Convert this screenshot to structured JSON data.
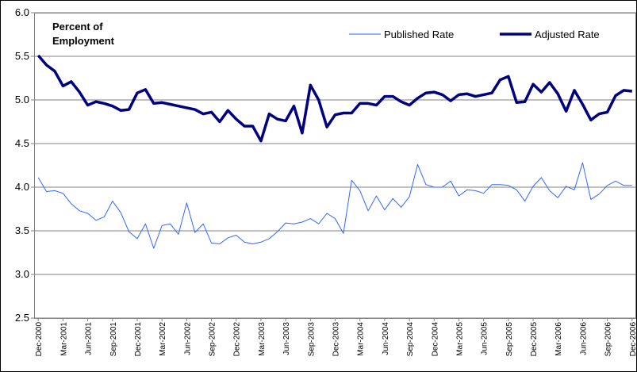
{
  "chart_data": {
    "type": "line",
    "annotation": [
      "Percent of",
      "Employment"
    ],
    "categories": [
      "Dec-2000",
      null,
      null,
      "Mar-2001",
      null,
      null,
      "Jun-2001",
      null,
      null,
      "Sep-2001",
      null,
      null,
      "Dec-2001",
      null,
      null,
      "Mar-2002",
      null,
      null,
      "Jun-2002",
      null,
      null,
      "Sep-2002",
      null,
      null,
      "Dec-2002",
      null,
      null,
      "Mar-2003",
      null,
      null,
      "Jun-2003",
      null,
      null,
      "Sep-2003",
      null,
      null,
      "Dec-2003",
      null,
      null,
      "Mar-2004",
      null,
      null,
      "Jun-2004",
      null,
      null,
      "Sep-2004",
      null,
      null,
      "Dec-2004",
      null,
      null,
      "Mar-2005",
      null,
      null,
      "Jun-2005",
      null,
      null,
      "Sep-2005",
      null,
      null,
      "Dec-2005",
      null,
      null,
      "Mar-2006",
      null,
      null,
      "Jun-2006",
      null,
      null,
      "Sep-2006",
      null,
      null,
      "Dec-2006"
    ],
    "series": [
      {
        "name": "Published Rate",
        "color": "#3366ff",
        "width": 1,
        "values": [
          4.11,
          3.95,
          3.96,
          3.93,
          3.81,
          3.73,
          3.7,
          3.62,
          3.66,
          3.84,
          3.71,
          3.49,
          3.41,
          3.58,
          3.3,
          3.56,
          3.58,
          3.46,
          3.82,
          3.48,
          3.58,
          3.36,
          3.35,
          3.42,
          3.45,
          3.37,
          3.35,
          3.37,
          3.41,
          3.49,
          3.59,
          3.58,
          3.6,
          3.64,
          3.58,
          3.7,
          3.64,
          3.47,
          4.08,
          3.96,
          3.73,
          3.9,
          3.74,
          3.87,
          3.77,
          3.89,
          4.26,
          4.03,
          4.0,
          4.0,
          4.07,
          3.9,
          3.97,
          3.96,
          3.93,
          4.03,
          4.03,
          4.02,
          3.97,
          3.84,
          4.01,
          4.11,
          3.96,
          3.88,
          4.01,
          3.97,
          4.28,
          3.86,
          3.92,
          4.02,
          4.07,
          4.02,
          4.02
        ]
      },
      {
        "name": "Adjusted Rate",
        "color": "#000080",
        "width": 3.5,
        "values": [
          5.51,
          5.4,
          5.33,
          5.16,
          5.21,
          5.09,
          4.94,
          4.98,
          4.96,
          4.93,
          4.88,
          4.89,
          5.08,
          5.12,
          4.96,
          4.97,
          4.95,
          4.93,
          4.91,
          4.89,
          4.84,
          4.86,
          4.75,
          4.88,
          4.78,
          4.7,
          4.7,
          4.53,
          4.84,
          4.78,
          4.76,
          4.93,
          4.62,
          5.17,
          5.0,
          4.69,
          4.83,
          4.85,
          4.85,
          4.96,
          4.96,
          4.94,
          5.04,
          5.04,
          4.98,
          4.94,
          5.02,
          5.08,
          5.09,
          5.06,
          4.99,
          5.06,
          5.07,
          5.04,
          5.06,
          5.08,
          5.23,
          5.27,
          4.97,
          4.98,
          5.18,
          5.09,
          5.2,
          5.07,
          4.87,
          5.11,
          4.95,
          4.77,
          4.84,
          4.86,
          5.05,
          5.11,
          5.1
        ]
      }
    ],
    "ylim": [
      2.5,
      6
    ],
    "yticks": [
      2.5,
      {
        "value": 3,
        "label": "3.0"
      },
      3.5,
      {
        "value": 4,
        "label": "4.0"
      },
      4.5,
      {
        "value": 5,
        "label": "5.0"
      },
      5.5,
      {
        "value": 6,
        "label": "6.0"
      }
    ],
    "grid": true
  }
}
